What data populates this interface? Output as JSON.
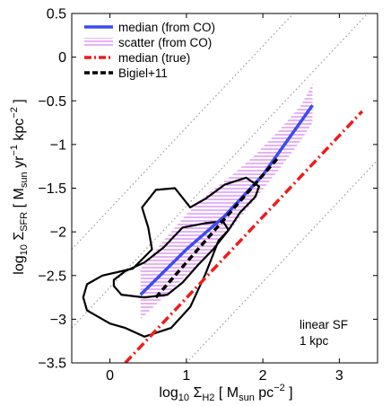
{
  "chart_data": {
    "type": "line",
    "xlabel": {
      "prefix": "log",
      "sub10": "10",
      "sigma": " Σ",
      "sub": "H2",
      "open": " [ M",
      "unit_sub": "sun",
      "unit_mid": " pc",
      "unit_sup": "−2",
      "close": " ]"
    },
    "ylabel": {
      "prefix": "log",
      "sub10": "10",
      "sigma": " Σ",
      "sub": "SFR",
      "open": " [ M",
      "unit_sub": "sun",
      "unit_mid1": " yr",
      "unit_sup1": "−1",
      "unit_mid2": " kpc",
      "unit_sup2": "−2",
      "close": " ]"
    },
    "xlim": [
      -0.5,
      3.5
    ],
    "ylim": [
      -3.5,
      0.5
    ],
    "xticks": [
      0,
      1,
      2,
      3
    ],
    "xtick_labels": [
      "0",
      "1",
      "2",
      "3"
    ],
    "yticks": [
      -3.5,
      -3,
      -2.5,
      -2,
      -1.5,
      -1,
      -0.5,
      0,
      0.5
    ],
    "ytick_labels": [
      "−3.5",
      "−3",
      "−2.5",
      "−2",
      "−1.5",
      "−1",
      "−0.5",
      "0",
      "0.5"
    ],
    "legend_position": "top-left",
    "annotation": [
      "linear SF",
      "1 kpc"
    ],
    "series": [
      {
        "name": "median (from CO)",
        "style": "solid",
        "color": "#3b4cf0",
        "x": [
          0.4,
          1.0,
          1.5,
          2.0,
          2.65
        ],
        "y": [
          -2.72,
          -2.2,
          -1.82,
          -1.35,
          -0.55
        ]
      },
      {
        "name": "scatter (from CO)",
        "style": "hatch",
        "color": "#cc66ee",
        "x": [
          0.4,
          0.7,
          1.0,
          1.3,
          1.6,
          1.9,
          2.2,
          2.5,
          2.65
        ],
        "upper": [
          -2.42,
          -2.1,
          -1.8,
          -1.55,
          -1.35,
          -1.12,
          -0.85,
          -0.55,
          -0.3
        ],
        "lower": [
          -3.0,
          -2.75,
          -2.5,
          -2.25,
          -1.95,
          -1.62,
          -1.3,
          -0.95,
          -0.75
        ]
      },
      {
        "name": "median (true)",
        "style": "dashdot",
        "color": "#ee1c1c",
        "x": [
          0.2,
          3.3
        ],
        "y": [
          -3.5,
          -0.62
        ]
      },
      {
        "name": "Bigiel+11",
        "style": "dashed",
        "color": "#000000",
        "x": [
          0.6,
          2.2
        ],
        "y": [
          -2.75,
          -1.15
        ]
      }
    ],
    "reference_lines": {
      "style": "dotted",
      "color": "#999999",
      "lines": [
        {
          "x": [
            -0.5,
            2.4
          ],
          "y": [
            -2.2,
            0.5
          ]
        },
        {
          "x": [
            -0.5,
            3.5
          ],
          "y": [
            -3.1,
            0.62
          ]
        },
        {
          "x": [
            1.0,
            3.5
          ],
          "y": [
            -3.5,
            -1.18
          ]
        }
      ]
    },
    "contours": {
      "color": "#000000",
      "outer": [
        [
          -0.3,
          -2.6
        ],
        [
          -0.1,
          -2.5
        ],
        [
          0.3,
          -2.42
        ],
        [
          0.55,
          -2.2
        ],
        [
          0.5,
          -1.95
        ],
        [
          0.42,
          -1.72
        ],
        [
          0.6,
          -1.52
        ],
        [
          0.85,
          -1.5
        ],
        [
          1.05,
          -1.72
        ],
        [
          1.25,
          -1.62
        ],
        [
          1.5,
          -1.46
        ],
        [
          1.78,
          -1.38
        ],
        [
          1.95,
          -1.48
        ],
        [
          1.9,
          -1.6
        ],
        [
          1.7,
          -1.78
        ],
        [
          1.55,
          -1.98
        ],
        [
          1.42,
          -2.1
        ],
        [
          1.25,
          -2.48
        ],
        [
          1.05,
          -2.86
        ],
        [
          0.8,
          -3.1
        ],
        [
          0.45,
          -3.2
        ],
        [
          0.2,
          -3.1
        ],
        [
          0.0,
          -3.05
        ],
        [
          -0.3,
          -2.9
        ],
        [
          -0.35,
          -2.75
        ],
        [
          -0.3,
          -2.6
        ]
      ],
      "inner": [
        [
          0.05,
          -2.55
        ],
        [
          0.2,
          -2.45
        ],
        [
          0.45,
          -2.35
        ],
        [
          0.7,
          -2.18
        ],
        [
          0.95,
          -1.95
        ],
        [
          1.25,
          -1.9
        ],
        [
          1.48,
          -1.88
        ],
        [
          1.55,
          -1.98
        ],
        [
          1.35,
          -2.2
        ],
        [
          1.15,
          -2.38
        ],
        [
          0.95,
          -2.58
        ],
        [
          0.75,
          -2.72
        ],
        [
          0.45,
          -2.75
        ],
        [
          0.15,
          -2.72
        ],
        [
          0.05,
          -2.62
        ],
        [
          0.05,
          -2.55
        ]
      ]
    }
  }
}
